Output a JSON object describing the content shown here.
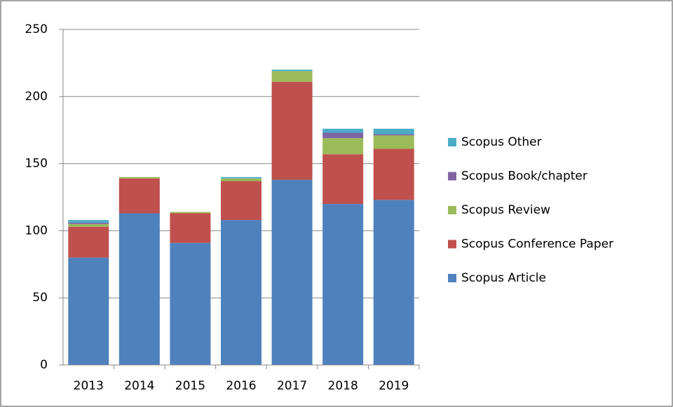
{
  "chart_data": {
    "type": "stacked_bar",
    "categories": [
      "2013",
      "2014",
      "2015",
      "2016",
      "2017",
      "2018",
      "2019"
    ],
    "series": [
      {
        "name": "Scopus Article",
        "color": "#4f81bd",
        "values": [
          80,
          113,
          91,
          108,
          138,
          120,
          123
        ]
      },
      {
        "name": "Scopus Conference Paper",
        "color": "#c0504d",
        "values": [
          23,
          26,
          22,
          29,
          73,
          37,
          38
        ]
      },
      {
        "name": "Scopus Review",
        "color": "#9bbb59",
        "values": [
          2,
          1,
          1,
          2,
          8,
          12,
          10
        ]
      },
      {
        "name": "Scopus Book/chapter",
        "color": "#8064a2",
        "values": [
          1,
          0,
          0,
          0,
          0,
          4,
          1
        ]
      },
      {
        "name": "Scopus Other",
        "color": "#4bacc6",
        "values": [
          2,
          0,
          0,
          1,
          1,
          3,
          4
        ]
      }
    ],
    "ylim": [
      0,
      250
    ],
    "yticks": [
      0,
      50,
      100,
      150,
      200,
      250
    ],
    "grid": true,
    "legend": "right"
  }
}
